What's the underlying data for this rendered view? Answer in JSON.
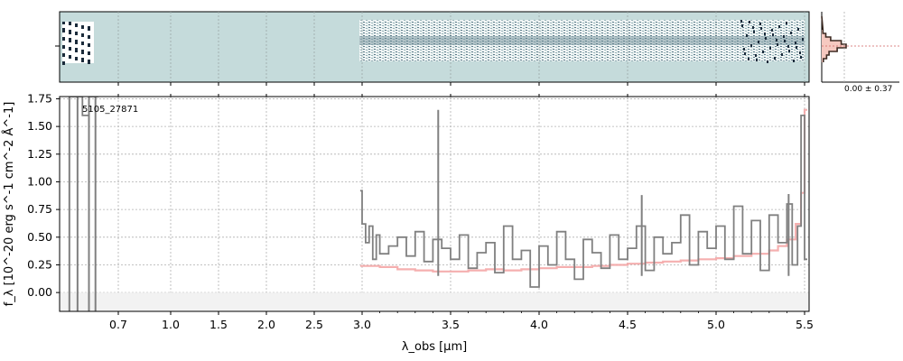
{
  "figure": {
    "object_id": "5105_27871",
    "stat_label": "0.00 ± 0.37"
  },
  "colors": {
    "spectrum": "#808080",
    "model": "#f4a6a6",
    "panel_bg": "#c5dbdb",
    "dark": "#1a2a3a",
    "hist_fill": "#f6c9c0",
    "hist_line": "#3d2a22",
    "zero_band": "#f2f2f2"
  },
  "chart_data": {
    "type": "line",
    "title": "",
    "xlabel": "λ_obs [μm]",
    "ylabel": "f_λ [10^-20 erg s^-1 cm^-2 Å^-1]",
    "xlim_um": [
      0.52,
      5.52
    ],
    "ylim": [
      -0.17,
      1.77
    ],
    "x_ticks": [
      "0.7",
      "1.0",
      "1.5",
      "2.0",
      "2.5",
      "3.0",
      "3.5",
      "4.0",
      "4.5",
      "5.0",
      "5.5"
    ],
    "x_tick_values": [
      0.7,
      1.0,
      1.5,
      2.0,
      2.5,
      3.0,
      3.5,
      4.0,
      4.5,
      5.0,
      5.5
    ],
    "y_ticks": [
      "0.00",
      "0.25",
      "0.50",
      "0.75",
      "1.00",
      "1.25",
      "1.50",
      "1.75"
    ],
    "y_tick_values": [
      0.0,
      0.25,
      0.5,
      0.75,
      1.0,
      1.25,
      1.5,
      1.75
    ],
    "grid": true,
    "series": [
      {
        "segment": "blue",
        "x": [
          0.55,
          0.57,
          0.59,
          0.61,
          0.63
        ],
        "y": [
          1.77,
          1.77,
          1.6,
          1.77,
          1.77
        ]
      },
      {
        "segment": "red",
        "x": [
          2.98,
          3.0,
          3.02,
          3.04,
          3.06,
          3.08,
          3.1,
          3.15,
          3.2,
          3.25,
          3.3,
          3.35,
          3.4,
          3.45,
          3.5,
          3.55,
          3.6,
          3.65,
          3.7,
          3.75,
          3.8,
          3.85,
          3.9,
          3.95,
          4.0,
          4.05,
          4.1,
          4.15,
          4.2,
          4.25,
          4.3,
          4.35,
          4.4,
          4.45,
          4.5,
          4.55,
          4.6,
          4.65,
          4.7,
          4.75,
          4.8,
          4.85,
          4.9,
          4.95,
          5.0,
          5.05,
          5.1,
          5.15,
          5.2,
          5.25,
          5.3,
          5.35,
          5.4,
          5.43,
          5.46,
          5.48,
          5.5
        ],
        "y": [
          0.92,
          0.62,
          0.45,
          0.6,
          0.3,
          0.52,
          0.35,
          0.42,
          0.5,
          0.33,
          0.55,
          0.28,
          0.48,
          0.4,
          0.3,
          0.52,
          0.22,
          0.36,
          0.45,
          0.18,
          0.6,
          0.3,
          0.38,
          0.05,
          0.42,
          0.25,
          0.55,
          0.3,
          0.12,
          0.48,
          0.36,
          0.22,
          0.52,
          0.3,
          0.4,
          0.6,
          0.2,
          0.5,
          0.35,
          0.45,
          0.7,
          0.25,
          0.55,
          0.4,
          0.6,
          0.3,
          0.78,
          0.35,
          0.65,
          0.2,
          0.7,
          0.45,
          0.8,
          0.25,
          0.6,
          1.6,
          0.3
        ]
      }
    ],
    "model": {
      "x": [
        2.98,
        3.1,
        3.2,
        3.3,
        3.4,
        3.5,
        3.6,
        3.7,
        3.8,
        3.9,
        4.0,
        4.1,
        4.2,
        4.3,
        4.4,
        4.5,
        4.6,
        4.7,
        4.8,
        4.9,
        5.0,
        5.1,
        5.2,
        5.3,
        5.35,
        5.4,
        5.45,
        5.48,
        5.5
      ],
      "y": [
        0.24,
        0.23,
        0.21,
        0.2,
        0.19,
        0.19,
        0.2,
        0.21,
        0.2,
        0.21,
        0.22,
        0.23,
        0.23,
        0.24,
        0.25,
        0.26,
        0.27,
        0.28,
        0.29,
        0.3,
        0.31,
        0.33,
        0.35,
        0.38,
        0.42,
        0.48,
        0.62,
        0.9,
        1.65
      ]
    },
    "gap_high_segment": {
      "x": [
        3.43,
        4.58,
        5.41
      ],
      "y": [
        1.65,
        0.88,
        0.89
      ]
    }
  },
  "residual_histogram": {
    "stat_label": "0.00 ± 0.37"
  }
}
